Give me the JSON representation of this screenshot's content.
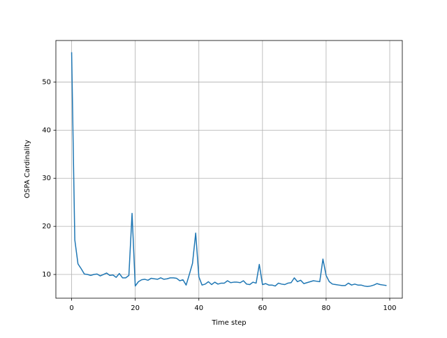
{
  "chart_data": {
    "type": "line",
    "xlabel": "Time step",
    "ylabel": "OSPA Cardinality",
    "x": [
      0,
      1,
      2,
      3,
      4,
      5,
      6,
      7,
      8,
      9,
      10,
      11,
      12,
      13,
      14,
      15,
      16,
      17,
      18,
      19,
      20,
      21,
      22,
      23,
      24,
      25,
      26,
      27,
      28,
      29,
      30,
      31,
      32,
      33,
      34,
      35,
      36,
      37,
      38,
      39,
      40,
      41,
      42,
      43,
      44,
      45,
      46,
      47,
      48,
      49,
      50,
      51,
      52,
      53,
      54,
      55,
      56,
      57,
      58,
      59,
      60,
      61,
      62,
      63,
      64,
      65,
      66,
      67,
      68,
      69,
      70,
      71,
      72,
      73,
      74,
      75,
      76,
      77,
      78,
      79,
      80,
      81,
      82,
      83,
      84,
      85,
      86,
      87,
      88,
      89,
      90,
      91,
      92,
      93,
      94,
      95,
      96,
      97,
      98,
      99
    ],
    "values": [
      56.2,
      17.2,
      12.2,
      11.2,
      10.1,
      10.0,
      9.8,
      10.0,
      10.1,
      9.7,
      10.0,
      10.3,
      9.8,
      9.9,
      9.4,
      10.2,
      9.3,
      9.3,
      9.8,
      22.7,
      7.6,
      8.5,
      8.9,
      9.0,
      8.8,
      9.2,
      9.1,
      9.0,
      9.3,
      9.0,
      9.1,
      9.3,
      9.3,
      9.2,
      8.7,
      8.9,
      7.8,
      10.0,
      12.3,
      18.6,
      9.5,
      7.8,
      8.0,
      8.5,
      7.9,
      8.4,
      8.0,
      8.2,
      8.2,
      8.7,
      8.3,
      8.4,
      8.4,
      8.3,
      8.7,
      8.0,
      7.9,
      8.4,
      8.2,
      12.1,
      7.9,
      8.1,
      7.8,
      7.8,
      7.6,
      8.2,
      8.0,
      7.9,
      8.2,
      8.3,
      9.3,
      8.5,
      8.8,
      8.1,
      8.3,
      8.5,
      8.7,
      8.6,
      8.5,
      13.2,
      9.8,
      8.5,
      8.0,
      7.9,
      7.8,
      7.7,
      7.7,
      8.2,
      7.8,
      8.0,
      7.8,
      7.8,
      7.6,
      7.5,
      7.6,
      7.8,
      8.1,
      7.9,
      7.8,
      7.7
    ],
    "color": "#1f77b4",
    "xlim": [
      -4.95,
      103.95
    ],
    "xticks": [
      0,
      20,
      40,
      60,
      80,
      100
    ],
    "ylim": [
      5.07,
      58.63
    ],
    "yticks": [
      10,
      20,
      30,
      40,
      50
    ],
    "grid": true
  }
}
